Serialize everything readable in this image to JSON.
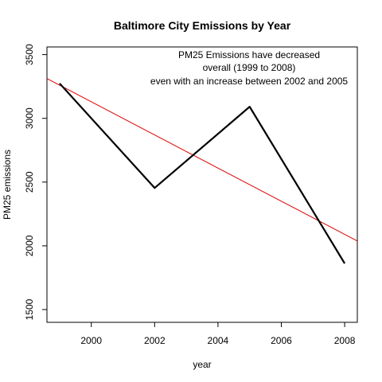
{
  "chart_data": {
    "type": "line",
    "title": "Baltimore City Emissions by Year",
    "xlabel": "year",
    "ylabel": "PM25 emissions",
    "x": [
      1999,
      2002,
      2005,
      2008
    ],
    "series": [
      {
        "values": [
          3274,
          2454,
          3091,
          1862
        ],
        "color": "#000000"
      }
    ],
    "trend_line": {
      "x": [
        1999,
        2008
      ],
      "values": [
        3260,
        2090
      ],
      "color": "#dd0000"
    },
    "xlim": [
      1998.6,
      2008.4
    ],
    "ylim": [
      1400,
      3560
    ],
    "x_ticks": [
      2000,
      2002,
      2004,
      2006,
      2008
    ],
    "y_ticks": [
      1500,
      2000,
      2500,
      3000,
      3500
    ],
    "annotation": [
      "PM25 Emissions have decreased",
      "overall (1999 to 2008)",
      "even with an increase between 2002 and 2005"
    ],
    "grid": false,
    "legend": "none"
  }
}
